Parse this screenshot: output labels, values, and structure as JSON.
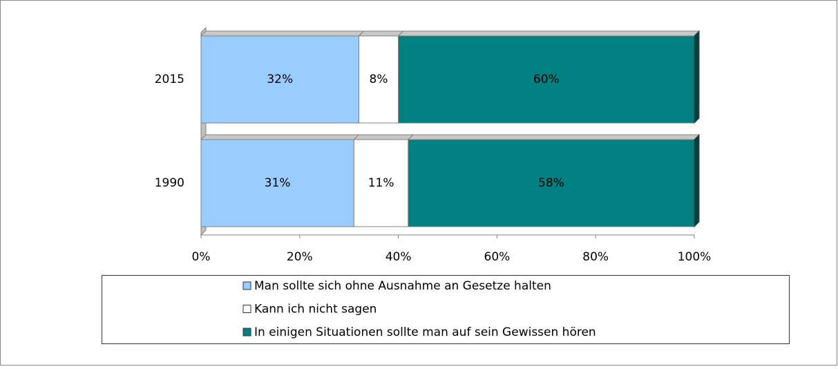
{
  "chart_data": {
    "type": "stacked-bar-horizontal",
    "categories": [
      "2015",
      "1990"
    ],
    "series": [
      {
        "name": "Man sollte sich ohne Ausnahme an Gesetze halten",
        "color": "#99ccff",
        "values": [
          32,
          31
        ],
        "value_labels": [
          "32%",
          "31%"
        ]
      },
      {
        "name": "Kann ich nicht sagen",
        "color": "#ffffff",
        "values": [
          8,
          11
        ],
        "value_labels": [
          "8%",
          "11%"
        ]
      },
      {
        "name": "In einigen Situationen sollte man auf sein Gewissen hören",
        "color": "#008080",
        "values": [
          60,
          58
        ],
        "value_labels": [
          "60%",
          "58%"
        ]
      }
    ],
    "xlim": [
      0,
      100
    ],
    "xticks": [
      {
        "value": 0,
        "label": "0%"
      },
      {
        "value": 20,
        "label": "20%"
      },
      {
        "value": 40,
        "label": "40%"
      },
      {
        "value": 60,
        "label": "60%"
      },
      {
        "value": 80,
        "label": "80%"
      },
      {
        "value": 100,
        "label": "100%"
      }
    ],
    "legend": "bottom"
  }
}
